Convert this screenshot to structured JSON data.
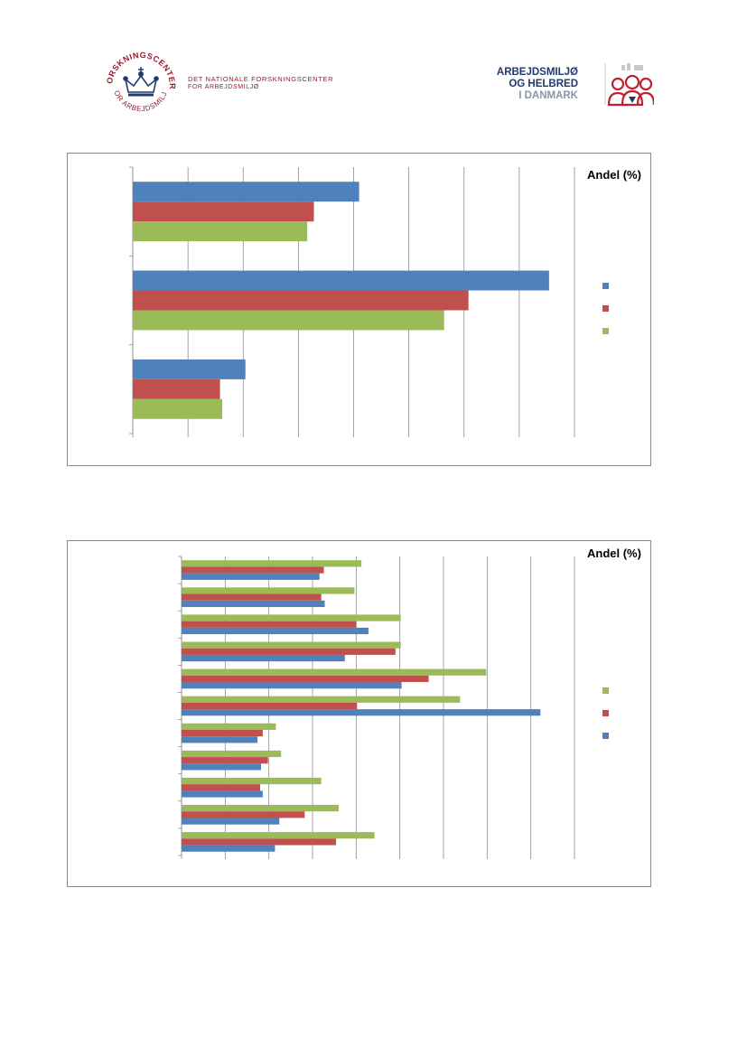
{
  "header": {
    "left_logo": {
      "ring_top_text": "FORSKNINGSCENTER",
      "ring_bottom_text": "FOR ARBEJDSMILJØ",
      "title_line1": "DET NATIONALE FORSKNINGSCENTER",
      "title_line2": "FOR ARBEJDSMILJØ",
      "color": "#9b1b30",
      "crown_color": "#1f3a6b"
    },
    "right_logo": {
      "line1": "ARBEJDSMILJØ",
      "line2": "OG HELBRED",
      "line3": "I DANMARK",
      "text_color": "#1f3a6b",
      "icon_color": "#c0202f"
    }
  },
  "chart_data": [
    {
      "type": "bar",
      "orientation": "horizontal",
      "title": "Andel (%)",
      "categories": [
        "",
        "",
        ""
      ],
      "series": [
        {
          "color": "#4f81bd",
          "values": [
            20.5,
            37.7,
            10.2
          ]
        },
        {
          "color": "#c0504d",
          "values": [
            16.4,
            30.4,
            7.9
          ]
        },
        {
          "color": "#9bbb59",
          "values": [
            15.8,
            28.2,
            8.1
          ]
        }
      ],
      "xlim": [
        0,
        40
      ],
      "x_gridlines": 8,
      "grid": true,
      "legend": "right"
    },
    {
      "type": "bar",
      "orientation": "horizontal",
      "title": "Andel (%)",
      "categories": [
        "",
        "",
        "",
        "",
        "",
        "",
        "",
        "",
        "",
        "",
        ""
      ],
      "series": [
        {
          "color": "#9bbb59",
          "values": [
            20.6,
            19.8,
            25.1,
            25.1,
            34.9,
            31.9,
            10.8,
            11.4,
            16.0,
            18.0,
            22.1
          ]
        },
        {
          "color": "#c0504d",
          "values": [
            16.3,
            16.0,
            20.0,
            24.5,
            28.3,
            20.1,
            9.3,
            9.9,
            9.0,
            14.1,
            17.7
          ]
        },
        {
          "color": "#4f81bd",
          "values": [
            15.8,
            16.4,
            21.4,
            18.7,
            25.2,
            41.1,
            8.7,
            9.1,
            9.3,
            11.2,
            10.7
          ]
        }
      ],
      "xlim": [
        0,
        45
      ],
      "x_gridlines": 9,
      "grid": true,
      "legend": "right"
    }
  ]
}
